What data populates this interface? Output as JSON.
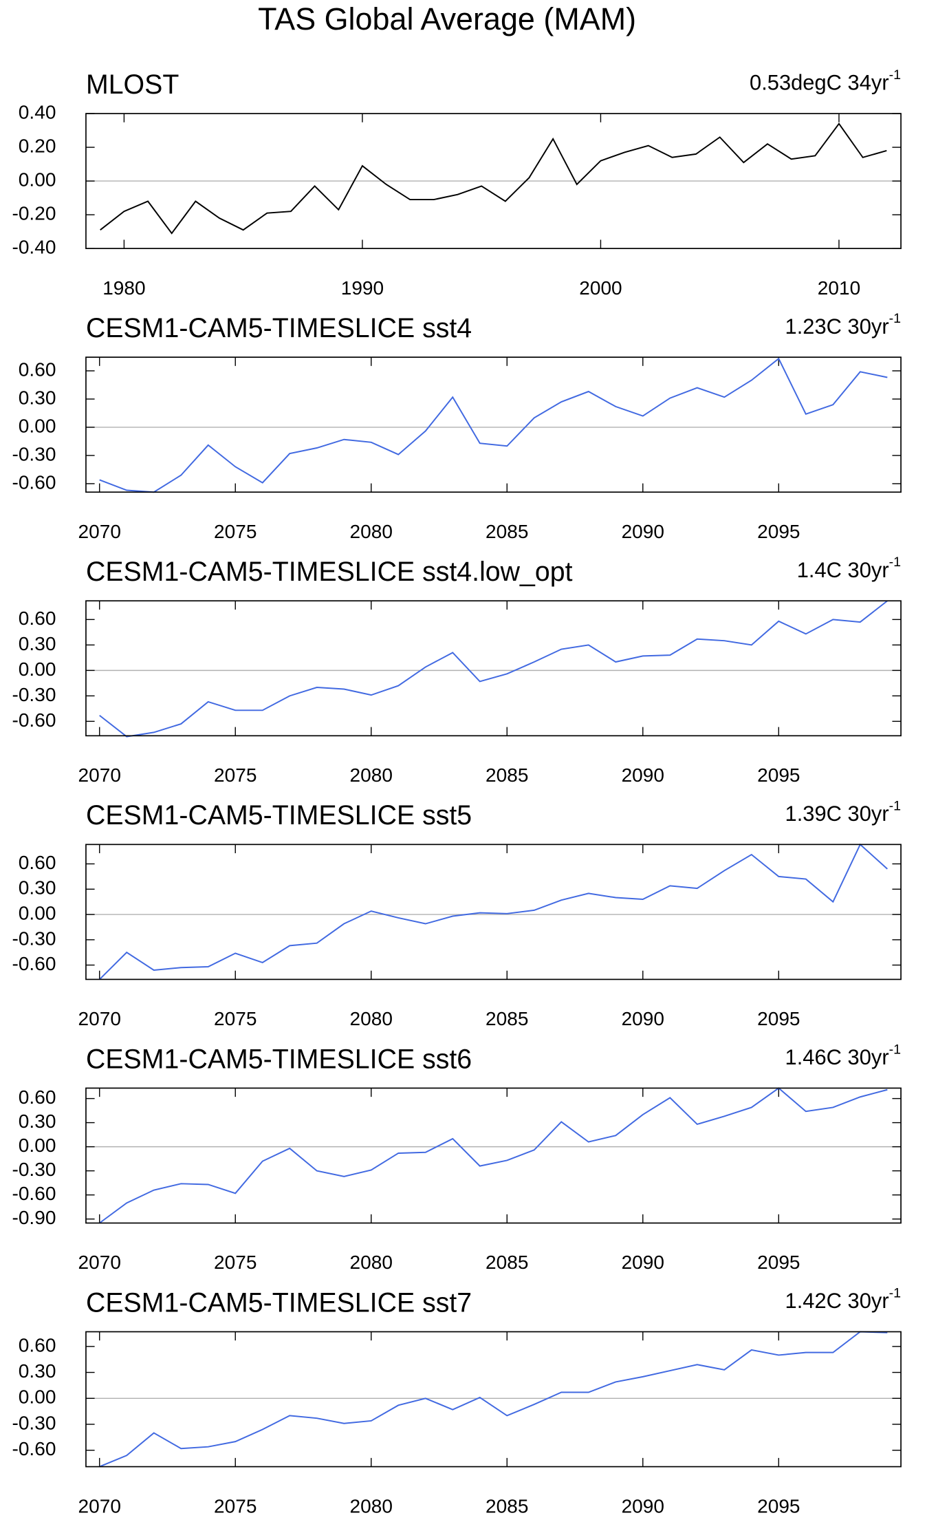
{
  "title": "TAS Global Average (MAM)",
  "chart_data": [
    {
      "type": "line",
      "title": "MLOST",
      "trend": "0.53degC 34yr",
      "trend_sup": "-1",
      "x": [
        1979,
        1980,
        1981,
        1982,
        1983,
        1984,
        1985,
        1986,
        1987,
        1988,
        1989,
        1990,
        1991,
        1992,
        1993,
        1994,
        1995,
        1996,
        1997,
        1998,
        1999,
        2000,
        2001,
        2002,
        2003,
        2004,
        2005,
        2006,
        2007,
        2008,
        2009,
        2010,
        2011,
        2012
      ],
      "series": [
        {
          "color": "#000000",
          "values": [
            -0.29,
            -0.18,
            -0.12,
            -0.31,
            -0.12,
            -0.22,
            -0.29,
            -0.19,
            -0.18,
            -0.03,
            -0.17,
            0.09,
            -0.02,
            -0.11,
            -0.11,
            -0.08,
            -0.03,
            -0.12,
            0.02,
            0.25,
            -0.02,
            0.12,
            0.17,
            0.21,
            0.14,
            0.16,
            0.26,
            0.11,
            0.22,
            0.13,
            0.15,
            0.34,
            0.14,
            0.18
          ]
        }
      ],
      "xlim": [
        1978.4,
        2012.6
      ],
      "xticks": [
        1980,
        1990,
        2000,
        2010
      ],
      "ylim": [
        -0.4,
        0.4
      ],
      "yticks": [
        {
          "value": -0.4,
          "label": "-0.40"
        },
        {
          "value": -0.2,
          "label": "-0.20"
        },
        {
          "value": 0,
          "label": "0.00"
        },
        {
          "value": 0.2,
          "label": "0.20"
        },
        {
          "value": 0.4,
          "label": "0.40"
        }
      ],
      "zero_line": true
    },
    {
      "type": "line",
      "title": "CESM1-CAM5-TIMESLICE sst4",
      "trend": "1.23C 30yr",
      "trend_sup": "-1",
      "x": [
        2070,
        2071,
        2072,
        2073,
        2074,
        2075,
        2076,
        2077,
        2078,
        2079,
        2080,
        2081,
        2082,
        2083,
        2084,
        2085,
        2086,
        2087,
        2088,
        2089,
        2090,
        2091,
        2092,
        2093,
        2094,
        2095,
        2096,
        2097,
        2098,
        2099
      ],
      "series": [
        {
          "color": "#4169e1",
          "values": [
            -0.56,
            -0.67,
            -0.69,
            -0.51,
            -0.19,
            -0.42,
            -0.59,
            -0.28,
            -0.22,
            -0.13,
            -0.16,
            -0.29,
            -0.04,
            0.32,
            -0.17,
            -0.2,
            0.1,
            0.27,
            0.38,
            0.22,
            0.12,
            0.31,
            0.42,
            0.32,
            0.5,
            0.73,
            0.14,
            0.24,
            0.59,
            0.53
          ]
        }
      ],
      "xlim": [
        2069.5,
        2099.5
      ],
      "xticks": [
        2070,
        2075,
        2080,
        2085,
        2090,
        2095
      ],
      "ylim": [
        -0.69,
        0.745
      ],
      "yticks": [
        {
          "value": -0.6,
          "label": "-0.60"
        },
        {
          "value": -0.3,
          "label": "-0.30"
        },
        {
          "value": 0,
          "label": "0.00"
        },
        {
          "value": 0.3,
          "label": "0.30"
        },
        {
          "value": 0.6,
          "label": "0.60"
        }
      ],
      "zero_line": true
    },
    {
      "type": "line",
      "title": "CESM1-CAM5-TIMESLICE sst4.low_opt",
      "trend": "1.4C 30yr",
      "trend_sup": "-1",
      "x": [
        2070,
        2071,
        2072,
        2073,
        2074,
        2075,
        2076,
        2077,
        2078,
        2079,
        2080,
        2081,
        2082,
        2083,
        2084,
        2085,
        2086,
        2087,
        2088,
        2089,
        2090,
        2091,
        2092,
        2093,
        2094,
        2095,
        2096,
        2097,
        2098,
        2099
      ],
      "series": [
        {
          "color": "#4169e1",
          "values": [
            -0.53,
            -0.78,
            -0.73,
            -0.63,
            -0.37,
            -0.47,
            -0.47,
            -0.3,
            -0.2,
            -0.22,
            -0.29,
            -0.18,
            0.04,
            0.21,
            -0.13,
            -0.04,
            0.1,
            0.25,
            0.3,
            0.1,
            0.17,
            0.18,
            0.37,
            0.35,
            0.3,
            0.58,
            0.43,
            0.6,
            0.57,
            0.82
          ]
        }
      ],
      "xlim": [
        2069.5,
        2099.5
      ],
      "xticks": [
        2070,
        2075,
        2080,
        2085,
        2090,
        2095
      ],
      "ylim": [
        -0.77,
        0.82
      ],
      "yticks": [
        {
          "value": -0.6,
          "label": "-0.60"
        },
        {
          "value": -0.3,
          "label": "-0.30"
        },
        {
          "value": 0,
          "label": "0.00"
        },
        {
          "value": 0.3,
          "label": "0.30"
        },
        {
          "value": 0.6,
          "label": "0.60"
        }
      ],
      "zero_line": true
    },
    {
      "type": "line",
      "title": "CESM1-CAM5-TIMESLICE sst5",
      "trend": "1.39C 30yr",
      "trend_sup": "-1",
      "x": [
        2070,
        2071,
        2072,
        2073,
        2074,
        2075,
        2076,
        2077,
        2078,
        2079,
        2080,
        2081,
        2082,
        2083,
        2084,
        2085,
        2086,
        2087,
        2088,
        2089,
        2090,
        2091,
        2092,
        2093,
        2094,
        2095,
        2096,
        2097,
        2098,
        2099
      ],
      "series": [
        {
          "color": "#4169e1",
          "values": [
            -0.77,
            -0.45,
            -0.66,
            -0.63,
            -0.62,
            -0.46,
            -0.57,
            -0.37,
            -0.34,
            -0.11,
            0.04,
            -0.04,
            -0.11,
            -0.02,
            0.02,
            0.01,
            0.05,
            0.17,
            0.25,
            0.2,
            0.18,
            0.34,
            0.31,
            0.52,
            0.71,
            0.45,
            0.42,
            0.15,
            0.83,
            0.54
          ]
        }
      ],
      "xlim": [
        2069.5,
        2099.5
      ],
      "xticks": [
        2070,
        2075,
        2080,
        2085,
        2090,
        2095
      ],
      "ylim": [
        -0.77,
        0.83
      ],
      "yticks": [
        {
          "value": -0.6,
          "label": "-0.60"
        },
        {
          "value": -0.3,
          "label": "-0.30"
        },
        {
          "value": 0,
          "label": "0.00"
        },
        {
          "value": 0.3,
          "label": "0.30"
        },
        {
          "value": 0.6,
          "label": "0.60"
        }
      ],
      "zero_line": true
    },
    {
      "type": "line",
      "title": "CESM1-CAM5-TIMESLICE sst6",
      "trend": "1.46C 30yr",
      "trend_sup": "-1",
      "x": [
        2070,
        2071,
        2072,
        2073,
        2074,
        2075,
        2076,
        2077,
        2078,
        2079,
        2080,
        2081,
        2082,
        2083,
        2084,
        2085,
        2086,
        2087,
        2088,
        2089,
        2090,
        2091,
        2092,
        2093,
        2094,
        2095,
        2096,
        2097,
        2098,
        2099
      ],
      "series": [
        {
          "color": "#4169e1",
          "values": [
            -0.95,
            -0.7,
            -0.54,
            -0.46,
            -0.47,
            -0.58,
            -0.18,
            -0.02,
            -0.3,
            -0.37,
            -0.29,
            -0.08,
            -0.07,
            0.1,
            -0.24,
            -0.17,
            -0.04,
            0.31,
            0.06,
            0.14,
            0.4,
            0.61,
            0.28,
            0.38,
            0.49,
            0.73,
            0.44,
            0.49,
            0.62,
            0.71
          ]
        }
      ],
      "xlim": [
        2069.5,
        2099.5
      ],
      "xticks": [
        2070,
        2075,
        2080,
        2085,
        2090,
        2095
      ],
      "ylim": [
        -0.95,
        0.73
      ],
      "yticks": [
        {
          "value": -0.9,
          "label": "-0.90"
        },
        {
          "value": -0.6,
          "label": "-0.60"
        },
        {
          "value": -0.3,
          "label": "-0.30"
        },
        {
          "value": 0,
          "label": "0.00"
        },
        {
          "value": 0.3,
          "label": "0.30"
        },
        {
          "value": 0.6,
          "label": "0.60"
        }
      ],
      "zero_line": true
    },
    {
      "type": "line",
      "title": "CESM1-CAM5-TIMESLICE sst7",
      "trend": "1.42C 30yr",
      "trend_sup": "-1",
      "x": [
        2070,
        2071,
        2072,
        2073,
        2074,
        2075,
        2076,
        2077,
        2078,
        2079,
        2080,
        2081,
        2082,
        2083,
        2084,
        2085,
        2086,
        2087,
        2088,
        2089,
        2090,
        2091,
        2092,
        2093,
        2094,
        2095,
        2096,
        2097,
        2098,
        2099
      ],
      "series": [
        {
          "color": "#4169e1",
          "values": [
            -0.79,
            -0.66,
            -0.4,
            -0.58,
            -0.56,
            -0.5,
            -0.36,
            -0.2,
            -0.23,
            -0.29,
            -0.26,
            -0.08,
            0.0,
            -0.13,
            0.01,
            -0.2,
            -0.07,
            0.07,
            0.07,
            0.19,
            0.25,
            0.32,
            0.39,
            0.33,
            0.56,
            0.5,
            0.53,
            0.53,
            0.77,
            0.76
          ]
        }
      ],
      "xlim": [
        2069.5,
        2099.5
      ],
      "xticks": [
        2070,
        2075,
        2080,
        2085,
        2090,
        2095
      ],
      "ylim": [
        -0.79,
        0.77
      ],
      "yticks": [
        {
          "value": -0.6,
          "label": "-0.60"
        },
        {
          "value": -0.3,
          "label": "-0.30"
        },
        {
          "value": 0,
          "label": "0.00"
        },
        {
          "value": 0.3,
          "label": "0.30"
        },
        {
          "value": 0.6,
          "label": "0.60"
        }
      ],
      "zero_line": true
    }
  ]
}
